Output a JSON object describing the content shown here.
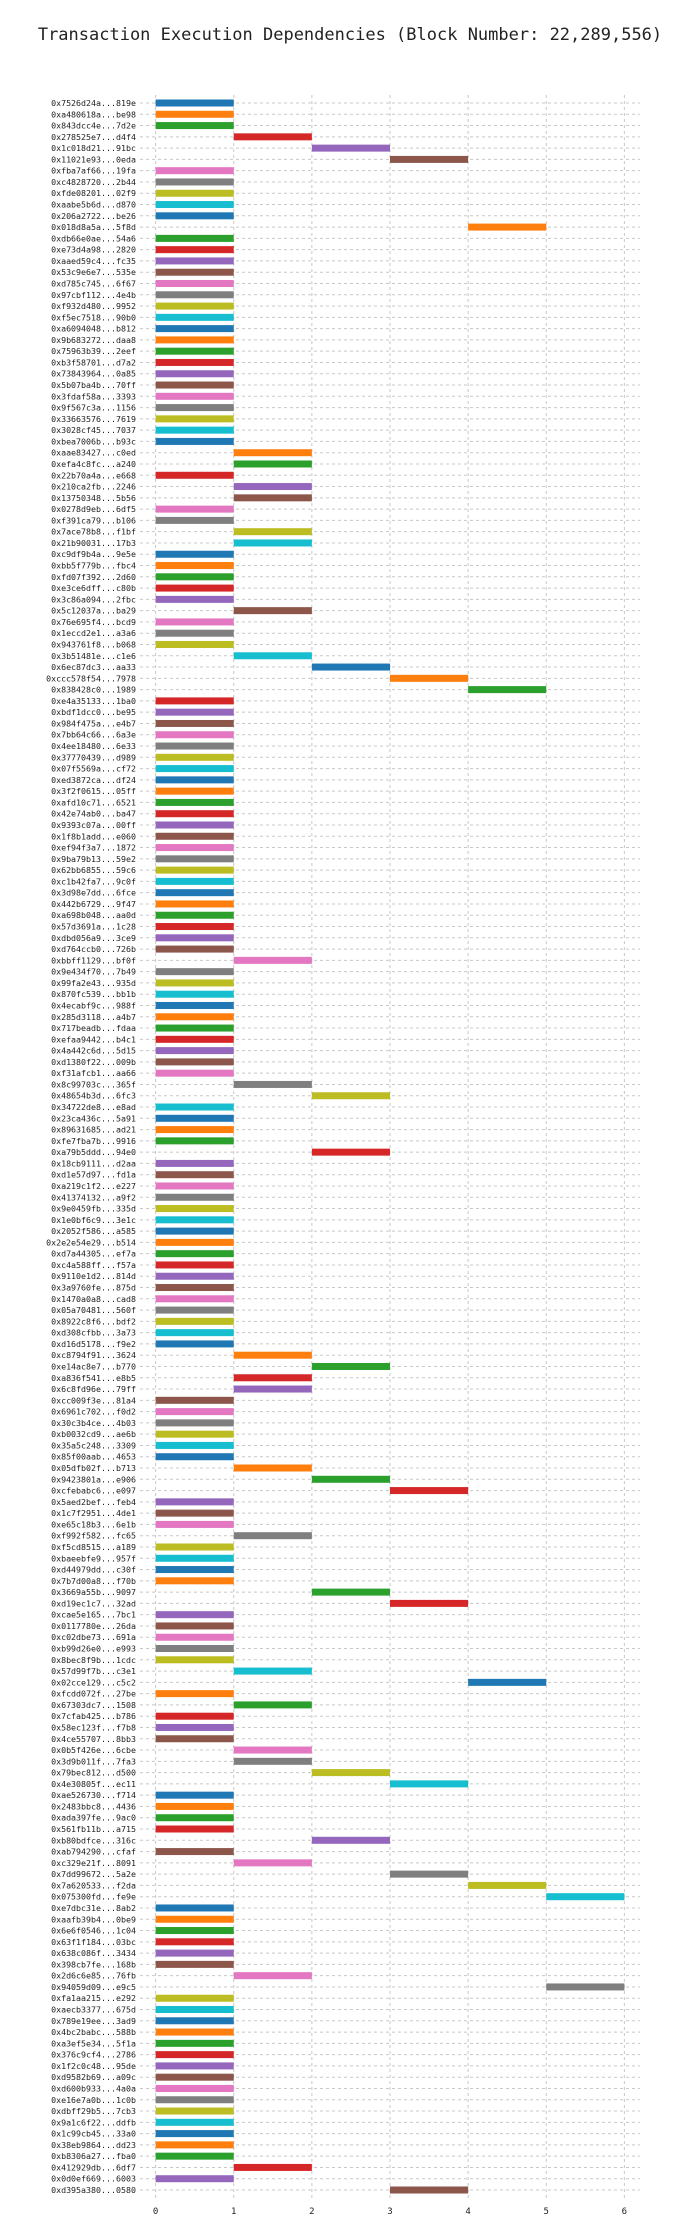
{
  "chart_data": {
    "type": "bar",
    "orientation": "horizontal",
    "title": "Transaction Execution Dependencies (Block Number: 22,289,556)",
    "xlabel": "",
    "ylabel": "",
    "xlim": [
      -0.2,
      6.2
    ],
    "xticks": [
      "0",
      "1",
      "2",
      "3",
      "4",
      "5",
      "6"
    ],
    "grid": true,
    "palette": [
      "#1f77b4",
      "#ff7f0e",
      "#2ca02c",
      "#d62728",
      "#9467bd",
      "#8c564b",
      "#e377c2",
      "#7f7f7f",
      "#bcbd22",
      "#17becf"
    ],
    "transactions": [
      {
        "label": "0x7526d24a...819e",
        "start": 0,
        "end": 1
      },
      {
        "label": "0xa480618a...be98",
        "start": 0,
        "end": 1
      },
      {
        "label": "0x843dcc4e...7d2e",
        "start": 0,
        "end": 1
      },
      {
        "label": "0x278525e7...d4f4",
        "start": 1,
        "end": 2
      },
      {
        "label": "0x1c018d21...91bc",
        "start": 2,
        "end": 3
      },
      {
        "label": "0x11021e93...0eda",
        "start": 3,
        "end": 4
      },
      {
        "label": "0xfba7af66...19fa",
        "start": 0,
        "end": 1
      },
      {
        "label": "0xc4828720...2b44",
        "start": 0,
        "end": 1
      },
      {
        "label": "0xfde08201...02f9",
        "start": 0,
        "end": 1
      },
      {
        "label": "0xaabe5b6d...d870",
        "start": 0,
        "end": 1
      },
      {
        "label": "0x206a2722...be26",
        "start": 0,
        "end": 1
      },
      {
        "label": "0x018d8a5a...5f8d",
        "start": 4,
        "end": 5
      },
      {
        "label": "0xdb66e0ae...54a6",
        "start": 0,
        "end": 1
      },
      {
        "label": "0xe73d4a98...2820",
        "start": 0,
        "end": 1
      },
      {
        "label": "0xaaed59c4...fc35",
        "start": 0,
        "end": 1
      },
      {
        "label": "0x53c9e6e7...535e",
        "start": 0,
        "end": 1
      },
      {
        "label": "0xd785c745...6f67",
        "start": 0,
        "end": 1
      },
      {
        "label": "0x97cbf112...4e4b",
        "start": 0,
        "end": 1
      },
      {
        "label": "0xf932d480...9952",
        "start": 0,
        "end": 1
      },
      {
        "label": "0xf5ec7518...90b0",
        "start": 0,
        "end": 1
      },
      {
        "label": "0xa6094048...b812",
        "start": 0,
        "end": 1
      },
      {
        "label": "0x9b683272...daa8",
        "start": 0,
        "end": 1
      },
      {
        "label": "0x75963b39...2eef",
        "start": 0,
        "end": 1
      },
      {
        "label": "0xb3f58701...d7a2",
        "start": 0,
        "end": 1
      },
      {
        "label": "0x73843964...0a85",
        "start": 0,
        "end": 1
      },
      {
        "label": "0x5b07ba4b...70ff",
        "start": 0,
        "end": 1
      },
      {
        "label": "0x3fdaf58a...3393",
        "start": 0,
        "end": 1
      },
      {
        "label": "0x9f567c3a...1156",
        "start": 0,
        "end": 1
      },
      {
        "label": "0x33663576...7619",
        "start": 0,
        "end": 1
      },
      {
        "label": "0x3028cf45...7037",
        "start": 0,
        "end": 1
      },
      {
        "label": "0xbea7006b...b93c",
        "start": 0,
        "end": 1
      },
      {
        "label": "0xaae83427...c0ed",
        "start": 1,
        "end": 2
      },
      {
        "label": "0xefa4c8fc...a240",
        "start": 1,
        "end": 2
      },
      {
        "label": "0x22b70a4a...e668",
        "start": 0,
        "end": 1
      },
      {
        "label": "0x210ca2fb...2246",
        "start": 1,
        "end": 2
      },
      {
        "label": "0x13750348...5b56",
        "start": 1,
        "end": 2
      },
      {
        "label": "0x0278d9eb...6df5",
        "start": 0,
        "end": 1
      },
      {
        "label": "0xf391ca79...b106",
        "start": 0,
        "end": 1
      },
      {
        "label": "0x7ace78b8...f1bf",
        "start": 1,
        "end": 2
      },
      {
        "label": "0x21b90031...17b3",
        "start": 1,
        "end": 2
      },
      {
        "label": "0xc9df9b4a...9e5e",
        "start": 0,
        "end": 1
      },
      {
        "label": "0xbb5f779b...fbc4",
        "start": 0,
        "end": 1
      },
      {
        "label": "0xfd07f392...2d60",
        "start": 0,
        "end": 1
      },
      {
        "label": "0xe3ce6dff...c80b",
        "start": 0,
        "end": 1
      },
      {
        "label": "0x3c86a094...2fbc",
        "start": 0,
        "end": 1
      },
      {
        "label": "0x5c12037a...ba29",
        "start": 1,
        "end": 2
      },
      {
        "label": "0x76e695f4...bcd9",
        "start": 0,
        "end": 1
      },
      {
        "label": "0x1eccd2e1...a3a6",
        "start": 0,
        "end": 1
      },
      {
        "label": "0x943761f8...b068",
        "start": 0,
        "end": 1
      },
      {
        "label": "0x3b51481e...c1e6",
        "start": 1,
        "end": 2
      },
      {
        "label": "0x6ec87dc3...aa33",
        "start": 2,
        "end": 3
      },
      {
        "label": "0xccc578f54...7978",
        "start": 3,
        "end": 4
      },
      {
        "label": "0x838428c0...1989",
        "start": 4,
        "end": 5
      },
      {
        "label": "0xe4a35133...1ba0",
        "start": 0,
        "end": 1
      },
      {
        "label": "0xbdf1dcc0...be95",
        "start": 0,
        "end": 1
      },
      {
        "label": "0x984f475a...e4b7",
        "start": 0,
        "end": 1
      },
      {
        "label": "0x7bb64c66...6a3e",
        "start": 0,
        "end": 1
      },
      {
        "label": "0x4ee18480...6e33",
        "start": 0,
        "end": 1
      },
      {
        "label": "0x37770439...d989",
        "start": 0,
        "end": 1
      },
      {
        "label": "0x07f5569a...cf72",
        "start": 0,
        "end": 1
      },
      {
        "label": "0xed3872ca...df24",
        "start": 0,
        "end": 1
      },
      {
        "label": "0x3f2f0615...05ff",
        "start": 0,
        "end": 1
      },
      {
        "label": "0xafd10c71...6521",
        "start": 0,
        "end": 1
      },
      {
        "label": "0x42e74ab0...ba47",
        "start": 0,
        "end": 1
      },
      {
        "label": "0x9393c07a...00ff",
        "start": 0,
        "end": 1
      },
      {
        "label": "0x1f8b1add...e060",
        "start": 0,
        "end": 1
      },
      {
        "label": "0xef94f3a7...1872",
        "start": 0,
        "end": 1
      },
      {
        "label": "0x9ba79b13...59e2",
        "start": 0,
        "end": 1
      },
      {
        "label": "0x62bb6855...59c6",
        "start": 0,
        "end": 1
      },
      {
        "label": "0xc1b42fa7...9c0f",
        "start": 0,
        "end": 1
      },
      {
        "label": "0x3d98e7dd...6fce",
        "start": 0,
        "end": 1
      },
      {
        "label": "0x442b6729...9f47",
        "start": 0,
        "end": 1
      },
      {
        "label": "0xa698b048...aa0d",
        "start": 0,
        "end": 1
      },
      {
        "label": "0x57d3691a...1c28",
        "start": 0,
        "end": 1
      },
      {
        "label": "0xdbd056a9...3ce9",
        "start": 0,
        "end": 1
      },
      {
        "label": "0xd764ccb0...726b",
        "start": 0,
        "end": 1
      },
      {
        "label": "0xbbff1129...bf0f",
        "start": 1,
        "end": 2
      },
      {
        "label": "0x9e434f70...7b49",
        "start": 0,
        "end": 1
      },
      {
        "label": "0x99fa2e43...935d",
        "start": 0,
        "end": 1
      },
      {
        "label": "0x870fc539...bb1b",
        "start": 0,
        "end": 1
      },
      {
        "label": "0x4ecabf9c...988f",
        "start": 0,
        "end": 1
      },
      {
        "label": "0x285d3118...a4b7",
        "start": 0,
        "end": 1
      },
      {
        "label": "0x717beadb...fdaa",
        "start": 0,
        "end": 1
      },
      {
        "label": "0xefaa9442...b4c1",
        "start": 0,
        "end": 1
      },
      {
        "label": "0x4a442c6d...5d15",
        "start": 0,
        "end": 1
      },
      {
        "label": "0xd1380f22...009b",
        "start": 0,
        "end": 1
      },
      {
        "label": "0xf31afcb1...aa66",
        "start": 0,
        "end": 1
      },
      {
        "label": "0x8c99703c...365f",
        "start": 1,
        "end": 2
      },
      {
        "label": "0x48654b3d...6fc3",
        "start": 2,
        "end": 3
      },
      {
        "label": "0x34722de8...e8ad",
        "start": 0,
        "end": 1
      },
      {
        "label": "0x23ca436c...5a91",
        "start": 0,
        "end": 1
      },
      {
        "label": "0x89631685...ad21",
        "start": 0,
        "end": 1
      },
      {
        "label": "0xfe7fba7b...9916",
        "start": 0,
        "end": 1
      },
      {
        "label": "0xa79b5ddd...94e0",
        "start": 2,
        "end": 3
      },
      {
        "label": "0x18cb9111...d2aa",
        "start": 0,
        "end": 1
      },
      {
        "label": "0xd1e57d97...fd1a",
        "start": 0,
        "end": 1
      },
      {
        "label": "0xa219c1f2...e227",
        "start": 0,
        "end": 1
      },
      {
        "label": "0x41374132...a9f2",
        "start": 0,
        "end": 1
      },
      {
        "label": "0x9e0459fb...335d",
        "start": 0,
        "end": 1
      },
      {
        "label": "0x1e0bf6c9...3e1c",
        "start": 0,
        "end": 1
      },
      {
        "label": "0x2052f586...a585",
        "start": 0,
        "end": 1
      },
      {
        "label": "0x2e2e54e29...b514",
        "start": 0,
        "end": 1
      },
      {
        "label": "0xd7a44305...ef7a",
        "start": 0,
        "end": 1
      },
      {
        "label": "0xc4a588ff...f57a",
        "start": 0,
        "end": 1
      },
      {
        "label": "0x9110e1d2...814d",
        "start": 0,
        "end": 1
      },
      {
        "label": "0x3a9760fe...875d",
        "start": 0,
        "end": 1
      },
      {
        "label": "0x1470a0a8...cad8",
        "start": 0,
        "end": 1
      },
      {
        "label": "0x05a70481...560f",
        "start": 0,
        "end": 1
      },
      {
        "label": "0x8922c8f6...bdf2",
        "start": 0,
        "end": 1
      },
      {
        "label": "0xd308cfbb...3a73",
        "start": 0,
        "end": 1
      },
      {
        "label": "0xd16d5178...f9e2",
        "start": 0,
        "end": 1
      },
      {
        "label": "0xc8794f91...3624",
        "start": 1,
        "end": 2
      },
      {
        "label": "0xe14ac8e7...b770",
        "start": 2,
        "end": 3
      },
      {
        "label": "0xa836f541...e8b5",
        "start": 1,
        "end": 2
      },
      {
        "label": "0x6c8fd96e...79ff",
        "start": 1,
        "end": 2
      },
      {
        "label": "0xcc009f3e...81a4",
        "start": 0,
        "end": 1
      },
      {
        "label": "0x6961c702...f0d2",
        "start": 0,
        "end": 1
      },
      {
        "label": "0x30c3b4ce...4b03",
        "start": 0,
        "end": 1
      },
      {
        "label": "0xb0032cd9...ae6b",
        "start": 0,
        "end": 1
      },
      {
        "label": "0x35a5c248...3309",
        "start": 0,
        "end": 1
      },
      {
        "label": "0x85f00aab...4653",
        "start": 0,
        "end": 1
      },
      {
        "label": "0x05dfb02f...b713",
        "start": 1,
        "end": 2
      },
      {
        "label": "0x9423801a...e906",
        "start": 2,
        "end": 3
      },
      {
        "label": "0xcfebabc6...e097",
        "start": 3,
        "end": 4
      },
      {
        "label": "0x5aed2bef...feb4",
        "start": 0,
        "end": 1
      },
      {
        "label": "0x1c7f2951...4de1",
        "start": 0,
        "end": 1
      },
      {
        "label": "0xe65c18b3...6e1b",
        "start": 0,
        "end": 1
      },
      {
        "label": "0xf992f582...fc65",
        "start": 1,
        "end": 2
      },
      {
        "label": "0xf5cd8515...a189",
        "start": 0,
        "end": 1
      },
      {
        "label": "0xbaeebfe9...957f",
        "start": 0,
        "end": 1
      },
      {
        "label": "0xd44979dd...c30f",
        "start": 0,
        "end": 1
      },
      {
        "label": "0x7b7d00a8...f70b",
        "start": 0,
        "end": 1
      },
      {
        "label": "0x3669a55b...9097",
        "start": 2,
        "end": 3
      },
      {
        "label": "0xd19ec1c7...32ad",
        "start": 3,
        "end": 4
      },
      {
        "label": "0xcae5e165...7bc1",
        "start": 0,
        "end": 1
      },
      {
        "label": "0x0117780e...26da",
        "start": 0,
        "end": 1
      },
      {
        "label": "0xc02dbe73...691a",
        "start": 0,
        "end": 1
      },
      {
        "label": "0xb99d26e0...e993",
        "start": 0,
        "end": 1
      },
      {
        "label": "0x8bec8f9b...1cdc",
        "start": 0,
        "end": 1
      },
      {
        "label": "0x57d99f7b...c3e1",
        "start": 1,
        "end": 2
      },
      {
        "label": "0x02cce129...c5c2",
        "start": 4,
        "end": 5
      },
      {
        "label": "0xfcdd072f...27be",
        "start": 0,
        "end": 1
      },
      {
        "label": "0x67303dc7...1508",
        "start": 1,
        "end": 2
      },
      {
        "label": "0x7cfab425...b786",
        "start": 0,
        "end": 1
      },
      {
        "label": "0x58ec123f...f7b8",
        "start": 0,
        "end": 1
      },
      {
        "label": "0x4ce55707...8bb3",
        "start": 0,
        "end": 1
      },
      {
        "label": "0x0b5f426e...6cbe",
        "start": 1,
        "end": 2
      },
      {
        "label": "0x3d9b011f...7fa3",
        "start": 1,
        "end": 2
      },
      {
        "label": "0x79bec812...d500",
        "start": 2,
        "end": 3
      },
      {
        "label": "0x4e30805f...ec11",
        "start": 3,
        "end": 4
      },
      {
        "label": "0xae526730...f714",
        "start": 0,
        "end": 1
      },
      {
        "label": "0x2483bbc8...4436",
        "start": 0,
        "end": 1
      },
      {
        "label": "0xada397fe...9ac0",
        "start": 0,
        "end": 1
      },
      {
        "label": "0x561fb11b...a715",
        "start": 0,
        "end": 1
      },
      {
        "label": "0xb80bdfce...316c",
        "start": 2,
        "end": 3
      },
      {
        "label": "0xab794290...cfaf",
        "start": 0,
        "end": 1
      },
      {
        "label": "0xc329e21f...8091",
        "start": 1,
        "end": 2
      },
      {
        "label": "0x7dd99672...5a2e",
        "start": 3,
        "end": 4
      },
      {
        "label": "0x7a620533...f2da",
        "start": 4,
        "end": 5
      },
      {
        "label": "0x075300fd...fe9e",
        "start": 5,
        "end": 6
      },
      {
        "label": "0xe7dbc31e...8ab2",
        "start": 0,
        "end": 1
      },
      {
        "label": "0xaafb39b4...0be9",
        "start": 0,
        "end": 1
      },
      {
        "label": "0x6e6f0546...1c04",
        "start": 0,
        "end": 1
      },
      {
        "label": "0x63f1f184...03bc",
        "start": 0,
        "end": 1
      },
      {
        "label": "0x638c086f...3434",
        "start": 0,
        "end": 1
      },
      {
        "label": "0x398cb7fe...168b",
        "start": 0,
        "end": 1
      },
      {
        "label": "0x2d6c6e85...76fb",
        "start": 1,
        "end": 2
      },
      {
        "label": "0x94059d09...e9c5",
        "start": 5,
        "end": 6
      },
      {
        "label": "0xfa1aa215...e292",
        "start": 0,
        "end": 1
      },
      {
        "label": "0xaecb3377...675d",
        "start": 0,
        "end": 1
      },
      {
        "label": "0x789e19ee...3ad9",
        "start": 0,
        "end": 1
      },
      {
        "label": "0x4bc2babc...588b",
        "start": 0,
        "end": 1
      },
      {
        "label": "0xa3ef5e34...5f1a",
        "start": 0,
        "end": 1
      },
      {
        "label": "0x376c9cf4...2786",
        "start": 0,
        "end": 1
      },
      {
        "label": "0x1f2c0c48...95de",
        "start": 0,
        "end": 1
      },
      {
        "label": "0xd9582b69...a09c",
        "start": 0,
        "end": 1
      },
      {
        "label": "0xd600b933...4a0a",
        "start": 0,
        "end": 1
      },
      {
        "label": "0xe16e7a0b...1c0b",
        "start": 0,
        "end": 1
      },
      {
        "label": "0xdbff29b5...7cb3",
        "start": 0,
        "end": 1
      },
      {
        "label": "0x9a1c6f22...ddfb",
        "start": 0,
        "end": 1
      },
      {
        "label": "0x1c99cb45...33a0",
        "start": 0,
        "end": 1
      },
      {
        "label": "0x38eb9864...dd23",
        "start": 0,
        "end": 1
      },
      {
        "label": "0xb8306a27...fba0",
        "start": 0,
        "end": 1
      },
      {
        "label": "0x412929db...6df7",
        "start": 1,
        "end": 2
      },
      {
        "label": "0x0d0ef669...6003",
        "start": 0,
        "end": 1
      },
      {
        "label": "0xd395a380...0580",
        "start": 3,
        "end": 4
      }
    ]
  }
}
